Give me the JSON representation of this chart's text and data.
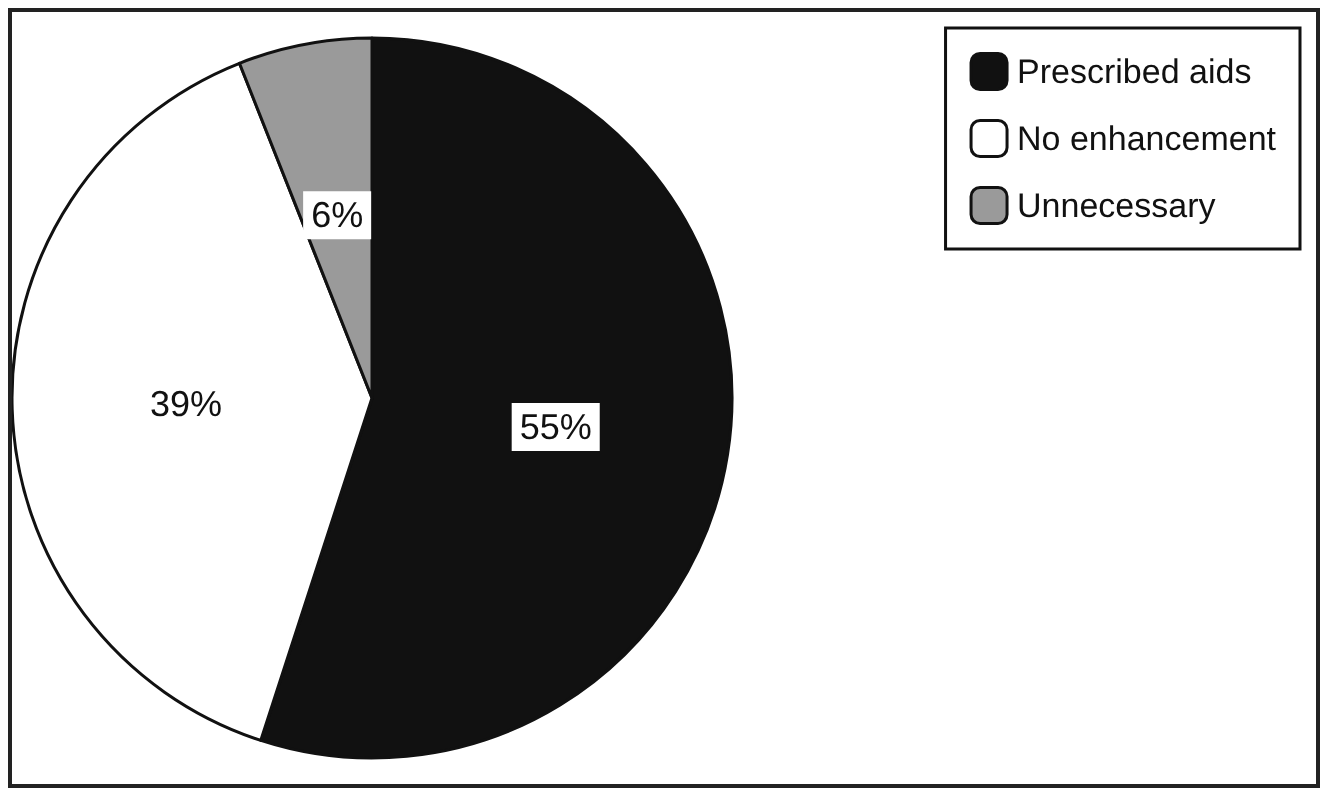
{
  "chart_data": {
    "type": "pie",
    "categories": [
      "Prescribed aids",
      "No enhancement",
      "Unnecessary"
    ],
    "values": [
      55,
      39,
      6
    ],
    "colors": [
      "#111111",
      "#ffffff",
      "#9a9a9a"
    ],
    "value_labels": [
      "55%",
      "39%",
      "6%"
    ],
    "legend": "top right"
  }
}
